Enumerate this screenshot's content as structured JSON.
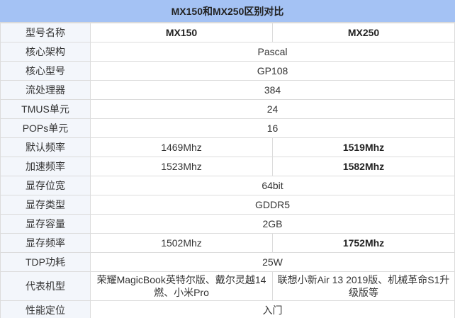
{
  "title": "MX150和MX250区别对比",
  "colors": {
    "header_bg": "#a4c2f4",
    "label_bg": "#f3f6fb",
    "border": "#dcdcdc"
  },
  "rows": [
    {
      "label": "型号名称",
      "a": "MX150",
      "b": "MX250",
      "bold_a": true,
      "bold_b": true
    },
    {
      "label": "核心架构",
      "merged": "Pascal"
    },
    {
      "label": "核心型号",
      "merged": "GP108"
    },
    {
      "label": "流处理器",
      "merged": "384"
    },
    {
      "label": "TMUS单元",
      "merged": "24"
    },
    {
      "label": "POPs单元",
      "merged": "16"
    },
    {
      "label": "默认频率",
      "a": "1469Mhz",
      "b": "1519Mhz",
      "bold_b": true
    },
    {
      "label": "加速频率",
      "a": "1523Mhz",
      "b": "1582Mhz",
      "bold_b": true
    },
    {
      "label": "显存位宽",
      "merged": "64bit"
    },
    {
      "label": "显存类型",
      "merged": "GDDR5"
    },
    {
      "label": "显存容量",
      "merged": "2GB"
    },
    {
      "label": "显存频率",
      "a": "1502Mhz",
      "b": "1752Mhz",
      "bold_b": true
    },
    {
      "label": "TDP功耗",
      "merged": "25W"
    },
    {
      "label": "代表机型",
      "a": "荣耀MagicBook英特尔版、戴尔灵越14燃、小米Pro",
      "b": "联想小新Air 13 2019版、机械革命S1升级版等",
      "tall": true
    },
    {
      "label": "性能定位",
      "merged": "入门"
    }
  ]
}
